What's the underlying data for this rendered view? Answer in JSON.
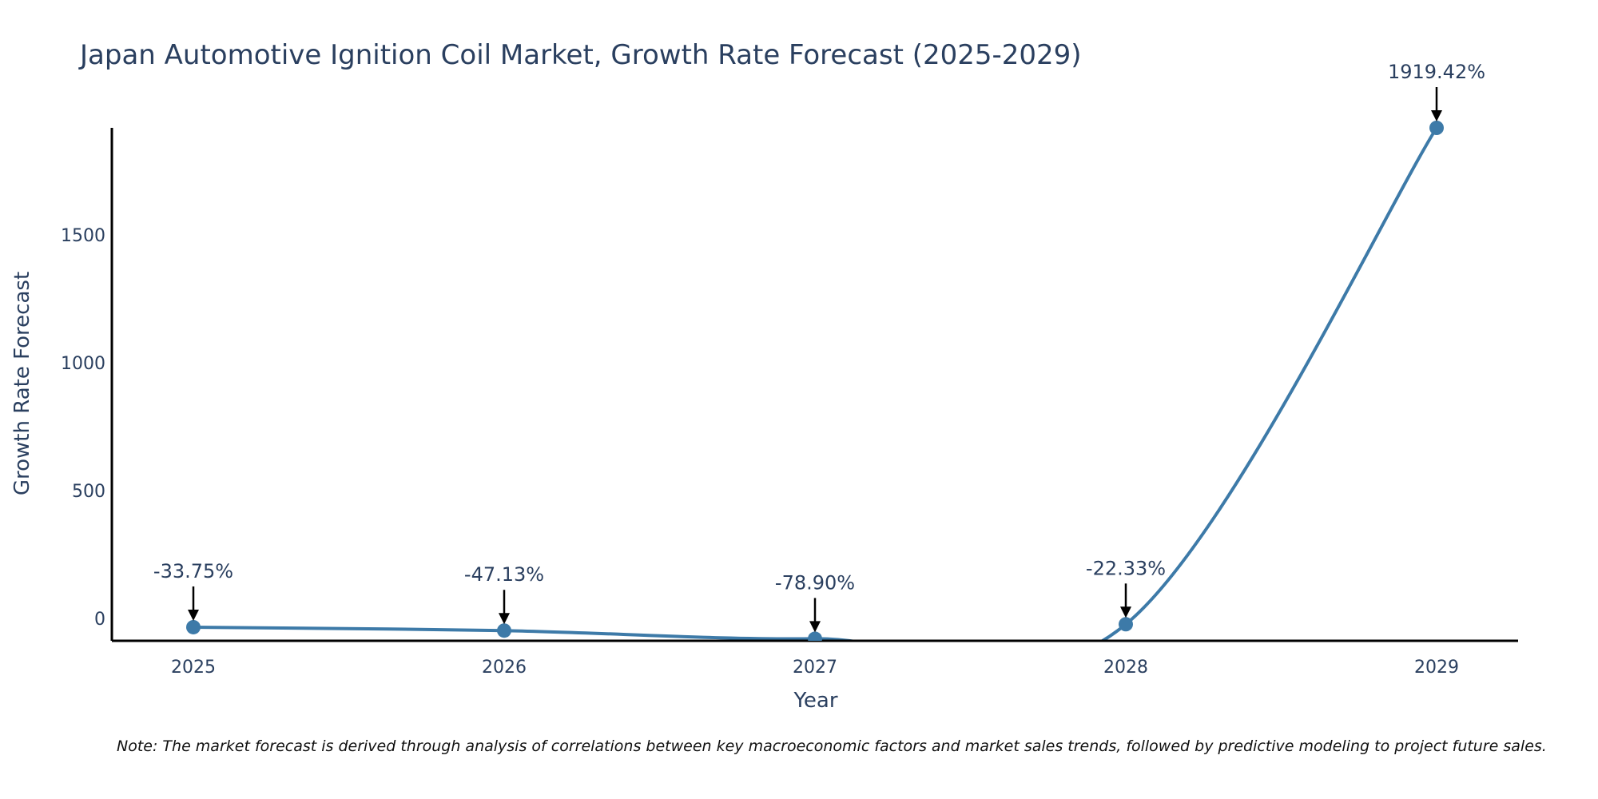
{
  "colors": {
    "series": "#3d7aa8",
    "text": "#2a3f5f",
    "axis": "#000000",
    "note": "#111111",
    "background": "#ffffff"
  },
  "chart_data": {
    "type": "line",
    "title": "Japan Automotive Ignition Coil Market, Growth Rate Forecast (2025-2029)",
    "xlabel": "Year",
    "ylabel": "Growth Rate Forecast",
    "categories": [
      "2025",
      "2026",
      "2027",
      "2028",
      "2029"
    ],
    "series": [
      {
        "name": "Growth Rate Forecast",
        "values": [
          -33.75,
          -47.13,
          -78.9,
          -22.33,
          1919.42
        ],
        "labels": [
          "-33.75%",
          "-47.13%",
          "-78.90%",
          "-22.33%",
          "1919.42%"
        ]
      }
    ],
    "ylim": [
      -87,
      1919.42
    ],
    "yticks": [
      0,
      500,
      1000,
      1500
    ],
    "ytick_labels": [
      "0",
      "500",
      "1000",
      "1500"
    ],
    "grid": false,
    "line_shape": "spline",
    "markers": true,
    "annotations": "arrow",
    "note": "Note: The market forecast is derived through analysis of correlations between key macroeconomic factors and market sales trends, followed by predictive modeling to project future sales."
  }
}
